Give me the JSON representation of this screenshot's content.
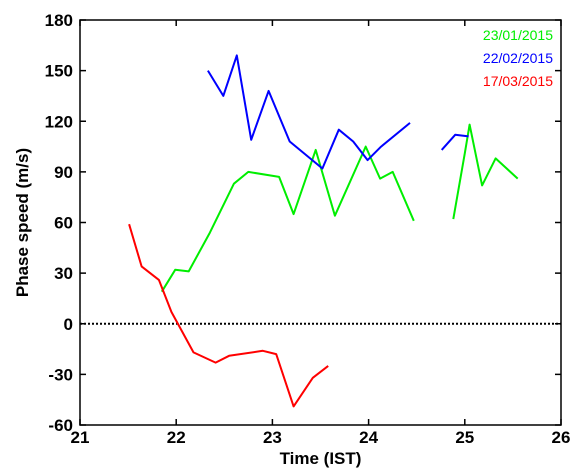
{
  "chart_data": {
    "type": "line",
    "title": "",
    "xlabel": "Time (IST)",
    "ylabel": "Phase speed (m/s)",
    "xlim": [
      21,
      26
    ],
    "ylim": [
      -60,
      180
    ],
    "xticks": [
      21,
      22,
      23,
      24,
      25,
      26
    ],
    "yticks": [
      -60,
      -30,
      0,
      30,
      60,
      90,
      120,
      150,
      180
    ],
    "grid": false,
    "legend": "top-right",
    "reference_line": {
      "y": 0,
      "style": "dotted",
      "color": "#000000"
    },
    "series": [
      {
        "name": "23/01/2015",
        "color": "#00ee00",
        "segments": [
          [
            [
              21.85,
              19
            ],
            [
              21.99,
              32
            ],
            [
              22.13,
              31
            ],
            [
              22.35,
              54
            ],
            [
              22.6,
              83
            ],
            [
              22.75,
              90
            ],
            [
              23.07,
              87
            ],
            [
              23.22,
              65
            ],
            [
              23.45,
              103
            ],
            [
              23.65,
              64
            ],
            [
              23.97,
              105
            ],
            [
              24.12,
              86
            ],
            [
              24.25,
              90
            ],
            [
              24.47,
              61
            ]
          ],
          [
            [
              24.88,
              62
            ],
            [
              25.0,
              101
            ],
            [
              25.05,
              118
            ],
            [
              25.18,
              82
            ],
            [
              25.32,
              98
            ],
            [
              25.55,
              86
            ]
          ]
        ]
      },
      {
        "name": "22/02/2015",
        "color": "#0000ff",
        "segments": [
          [
            [
              22.33,
              150
            ],
            [
              22.49,
              135
            ],
            [
              22.63,
              159
            ],
            [
              22.78,
              109
            ],
            [
              22.96,
              138
            ],
            [
              23.18,
              108
            ],
            [
              23.52,
              92
            ],
            [
              23.69,
              115
            ],
            [
              23.84,
              108
            ],
            [
              23.99,
              97
            ],
            [
              24.13,
              105
            ],
            [
              24.43,
              119
            ]
          ],
          [
            [
              24.76,
              103
            ],
            [
              24.9,
              112
            ],
            [
              25.04,
              111
            ]
          ]
        ]
      },
      {
        "name": "17/03/2015",
        "color": "#ff0000",
        "segments": [
          [
            [
              21.51,
              59
            ],
            [
              21.64,
              34
            ],
            [
              21.82,
              26
            ],
            [
              21.95,
              7
            ],
            [
              22.18,
              -17
            ],
            [
              22.41,
              -23
            ],
            [
              22.55,
              -19
            ],
            [
              22.9,
              -16
            ],
            [
              23.04,
              -18
            ],
            [
              23.22,
              -49
            ],
            [
              23.42,
              -32
            ],
            [
              23.58,
              -25
            ]
          ]
        ]
      }
    ]
  }
}
